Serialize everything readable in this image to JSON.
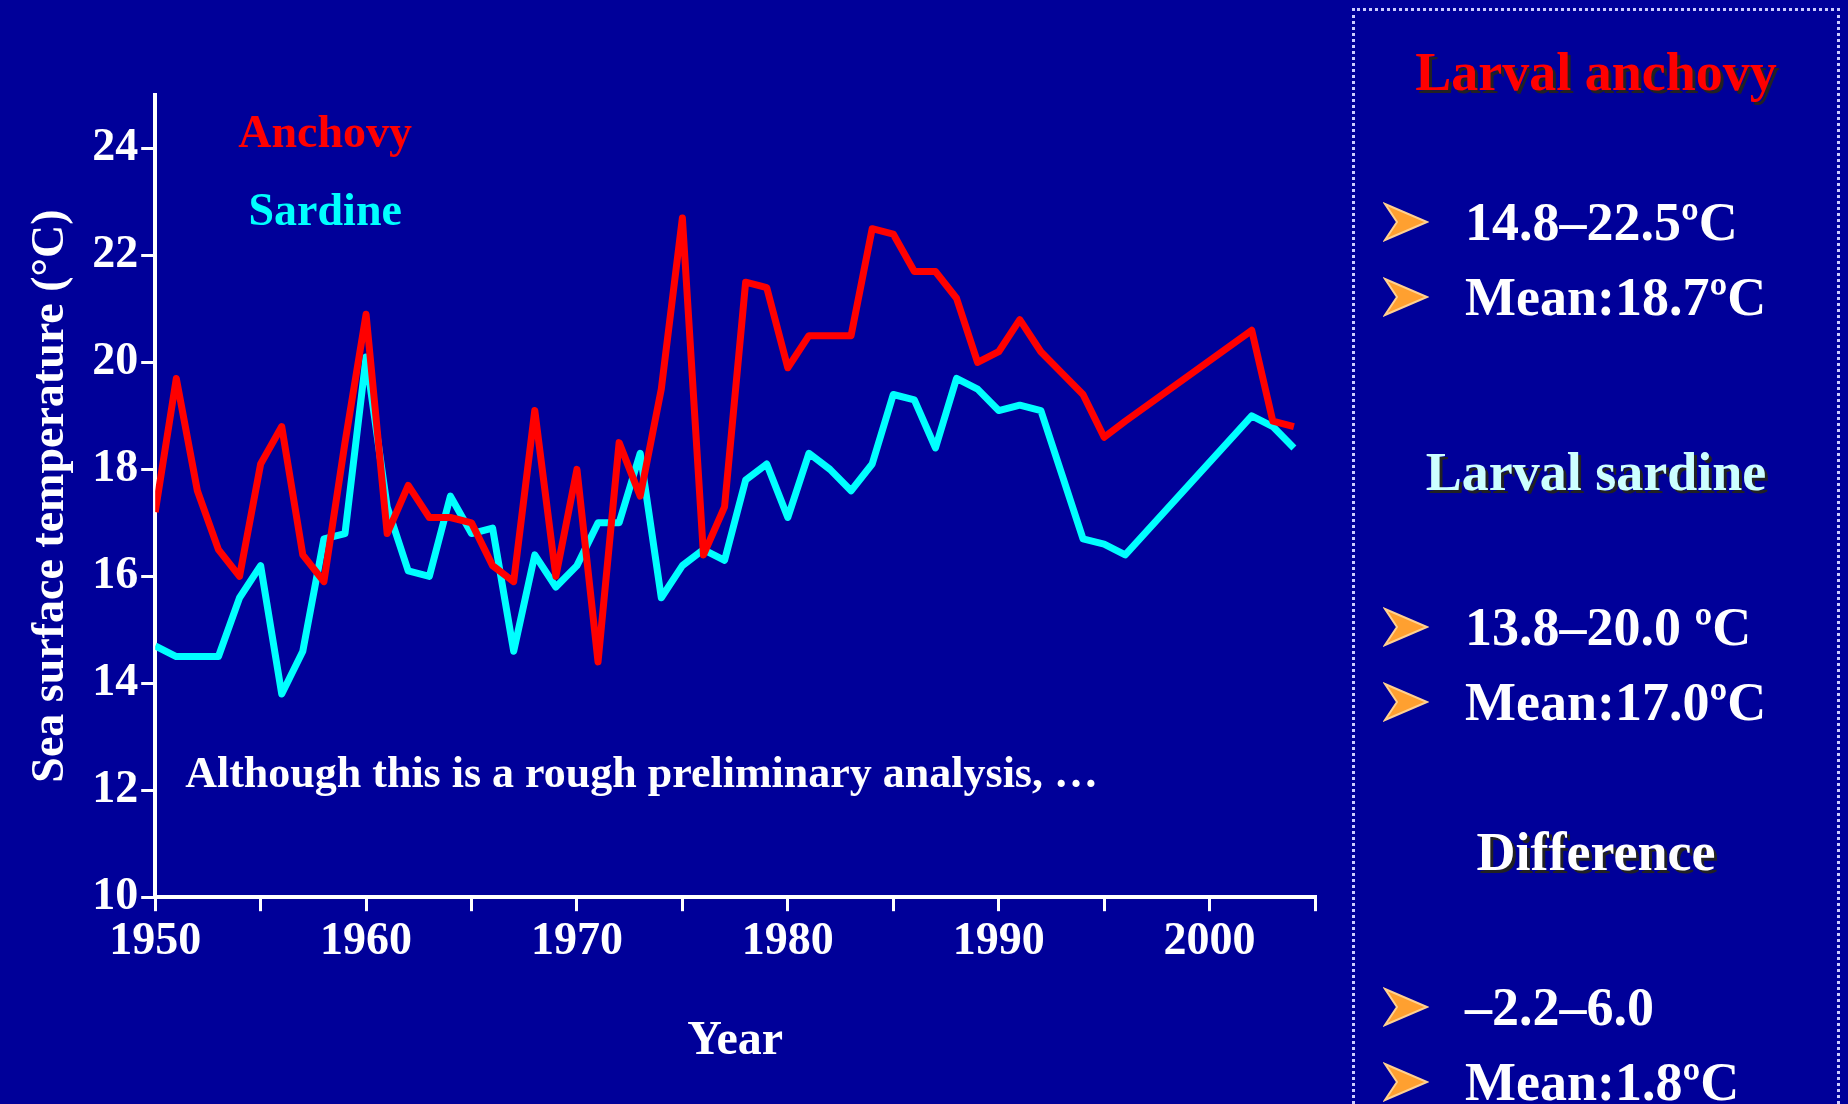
{
  "chart_data": {
    "type": "line",
    "xlabel": "Year",
    "ylabel": "Sea surface temperature (°C)",
    "xlim": [
      1950,
      2005
    ],
    "xticks": [
      1950,
      {
        "value": 1955,
        "label": null
      },
      1960,
      {
        "value": 1965,
        "label": null
      },
      1970,
      {
        "value": 1975,
        "label": null
      },
      1980,
      {
        "value": 1985,
        "label": null
      },
      1990,
      {
        "value": 1995,
        "label": null
      },
      2000,
      {
        "value": 2005,
        "label": null
      }
    ],
    "ylim": [
      10,
      25
    ],
    "yticks": [
      10,
      12,
      14,
      16,
      18,
      20,
      22,
      24
    ],
    "grid": false,
    "legend": "top left",
    "marker": "none",
    "line_style": "solid",
    "series": [
      {
        "name": "Anchovy",
        "color": "#ff0000",
        "x": [
          1950,
          1951,
          1952,
          1953,
          1954,
          1955,
          1956,
          1957,
          1958,
          1959,
          1960,
          1961,
          1962,
          1963,
          1964,
          1965,
          1966,
          1967,
          1968,
          1969,
          1970,
          1971,
          1972,
          1973,
          1974,
          1975,
          1976,
          1977,
          1978,
          1979,
          1980,
          1981,
          1982,
          1983,
          1984,
          1985,
          1986,
          1987,
          1988,
          1989,
          1990,
          1991,
          1992,
          1993,
          1994,
          1995,
          1996,
          2002,
          2003,
          2004
        ],
        "values": [
          17.2,
          19.7,
          17.6,
          16.5,
          16.0,
          18.1,
          18.8,
          16.4,
          15.9,
          18.5,
          20.9,
          16.8,
          17.7,
          17.1,
          17.1,
          17.0,
          16.2,
          15.9,
          19.1,
          16.0,
          18.0,
          14.4,
          18.5,
          17.5,
          19.5,
          22.7,
          16.4,
          17.3,
          21.5,
          21.4,
          19.9,
          20.5,
          20.5,
          20.5,
          22.5,
          22.4,
          21.7,
          21.7,
          21.2,
          20.0,
          20.2,
          20.8,
          20.2,
          19.8,
          19.4,
          18.6,
          18.9,
          20.6,
          18.9,
          18.8
        ]
      },
      {
        "name": "Sardine",
        "color": "#00ffff",
        "x": [
          1950,
          1951,
          1952,
          1953,
          1954,
          1955,
          1956,
          1957,
          1958,
          1959,
          1960,
          1961,
          1962,
          1963,
          1964,
          1965,
          1966,
          1967,
          1968,
          1969,
          1970,
          1971,
          1972,
          1973,
          1974,
          1975,
          1976,
          1977,
          1978,
          1979,
          1980,
          1981,
          1982,
          1983,
          1984,
          1985,
          1986,
          1987,
          1988,
          1989,
          1990,
          1991,
          1992,
          1993,
          1994,
          1995,
          1996,
          2002,
          2003,
          2004
        ],
        "values": [
          14.7,
          14.5,
          14.5,
          14.5,
          15.6,
          16.2,
          13.8,
          14.6,
          16.7,
          16.8,
          20.1,
          17.3,
          16.1,
          16.0,
          17.5,
          16.8,
          16.9,
          14.6,
          16.4,
          15.8,
          16.2,
          17.0,
          17.0,
          18.3,
          15.6,
          16.2,
          16.5,
          16.3,
          17.8,
          18.1,
          17.1,
          18.3,
          18.0,
          17.6,
          18.1,
          19.4,
          19.3,
          18.4,
          19.7,
          19.5,
          19.1,
          19.2,
          19.1,
          17.9,
          16.7,
          16.6,
          16.4,
          19.0,
          18.8,
          18.4
        ]
      }
    ],
    "annotations": [
      "Although this is a rough preliminary analysis, …",
      "Larval anchovy",
      "14.8–22.5ºC",
      "Mean:18.7ºC",
      "Larval sardine",
      "13.8–20.0 ºC",
      "Mean:17.0ºC",
      "Difference",
      "–2.2–6.0",
      "Mean:1.8ºC"
    ]
  }
}
